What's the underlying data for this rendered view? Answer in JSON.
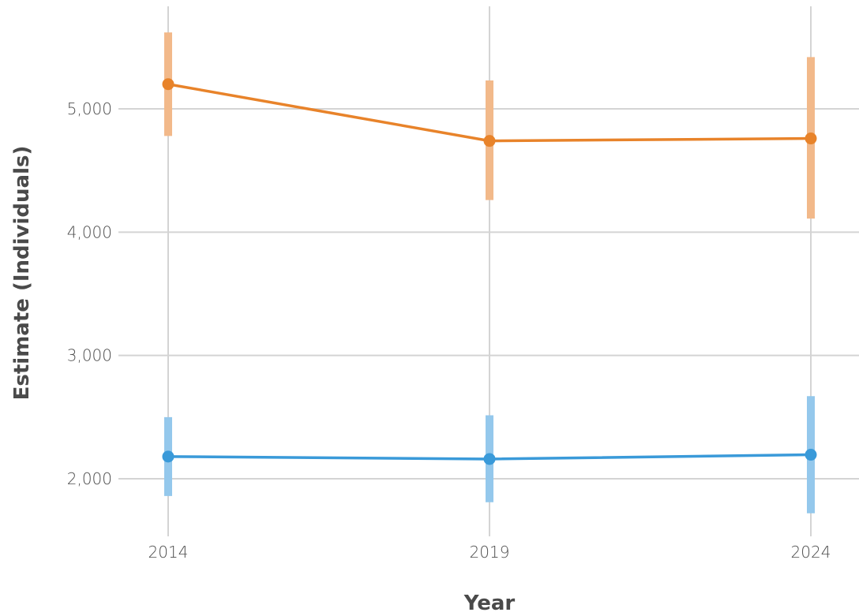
{
  "chart_data": {
    "type": "line",
    "x": [
      2014,
      2019,
      2024
    ],
    "xlabel": "Year",
    "ylabel": "Estimate (Individuals)",
    "ylim": [
      1550,
      5850
    ],
    "xticks": [
      2014,
      2019,
      2024
    ],
    "xtick_labels": [
      "2014",
      "2019",
      "2024"
    ],
    "yticks": [
      2000,
      3000,
      4000,
      5000
    ],
    "ytick_labels": [
      "2,000",
      "3,000",
      "4,000",
      "5,000"
    ],
    "grid": true,
    "legend": "none",
    "series": [
      {
        "color": "#e8832a",
        "errorbar_color": "#f2b98a",
        "values": [
          5200,
          4740,
          4760
        ],
        "lower": [
          4780,
          4260,
          4110
        ],
        "upper": [
          5620,
          5230,
          5420
        ]
      },
      {
        "color": "#3a9ad9",
        "errorbar_color": "#94c8ec",
        "values": [
          2180,
          2160,
          2195
        ],
        "lower": [
          1860,
          1810,
          1720
        ],
        "upper": [
          2500,
          2515,
          2670
        ]
      }
    ]
  }
}
